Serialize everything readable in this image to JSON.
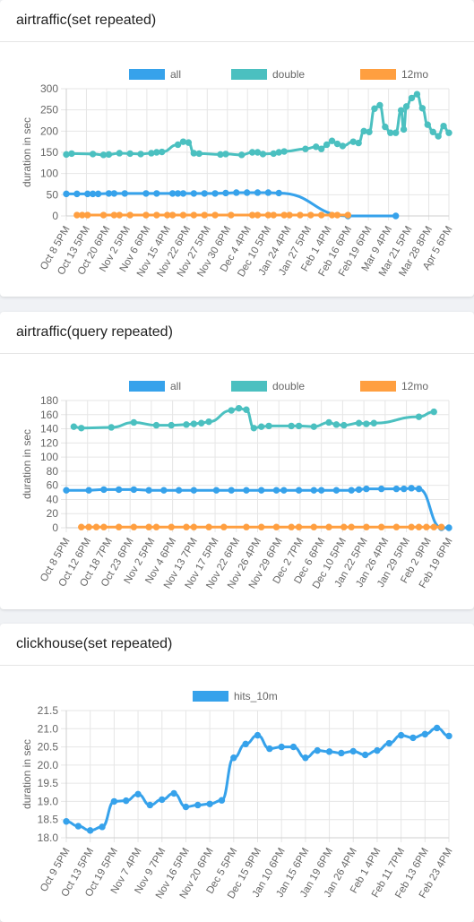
{
  "cards": [
    {
      "title": "airtraffic(set repeated)"
    },
    {
      "title": "airtraffic(query repeated)"
    },
    {
      "title": "clickhouse(set repeated)"
    }
  ],
  "chart_data": [
    {
      "type": "line",
      "ylabel": "duration in sec",
      "ylim": [
        0,
        300
      ],
      "yticks": [
        0,
        50,
        100,
        150,
        200,
        250,
        300
      ],
      "legend_position": "top",
      "x_tick_labels": [
        "Oct 8 5PM",
        "Oct 13 5PM",
        "Oct 20 6PM",
        "Nov 2 5PM",
        "Nov 6 6PM",
        "Nov 15 4PM",
        "Nov 22 6PM",
        "Nov 27 5PM",
        "Nov 30 6PM",
        "Dec 4 4PM",
        "Dec 10 5PM",
        "Jan 24 4PM",
        "Jan 27 5PM",
        "Feb 1 4PM",
        "Feb 16 6PM",
        "Feb 19 6PM",
        "Mar 9 4PM",
        "Mar 21 5PM",
        "Mar 28 8PM",
        "Apr 5 6PM"
      ],
      "series": [
        {
          "name": "all",
          "color": "#36a2eb",
          "points": [
            [
              0,
              52
            ],
            [
              2,
              52
            ],
            [
              4,
              52
            ],
            [
              5,
              52
            ],
            [
              6,
              52
            ],
            [
              8,
              53
            ],
            [
              9,
              53
            ],
            [
              11,
              53
            ],
            [
              15,
              53
            ],
            [
              17,
              53
            ],
            [
              20,
              53
            ],
            [
              21,
              53
            ],
            [
              22,
              53
            ],
            [
              24,
              53
            ],
            [
              26,
              53
            ],
            [
              28,
              53
            ],
            [
              30,
              54
            ],
            [
              32,
              55
            ],
            [
              34,
              55
            ],
            [
              36,
              55
            ],
            [
              38,
              55
            ],
            [
              40,
              54
            ],
            [
              53,
              0
            ],
            [
              62,
              0
            ]
          ]
        },
        {
          "name": "double",
          "color": "#4bc0c0",
          "points": [
            [
              0,
              145
            ],
            [
              1,
              147
            ],
            [
              5,
              146
            ],
            [
              7,
              144
            ],
            [
              8,
              145
            ],
            [
              10,
              148
            ],
            [
              12,
              147
            ],
            [
              14,
              146
            ],
            [
              16,
              148
            ],
            [
              17,
              150
            ],
            [
              18,
              151
            ],
            [
              21,
              168
            ],
            [
              22,
              175
            ],
            [
              23,
              173
            ],
            [
              24,
              148
            ],
            [
              25,
              147
            ],
            [
              29,
              145
            ],
            [
              30,
              146
            ],
            [
              33,
              144
            ],
            [
              35,
              150
            ],
            [
              36,
              150
            ],
            [
              37,
              146
            ],
            [
              39,
              147
            ],
            [
              40,
              150
            ],
            [
              41,
              152
            ],
            [
              45,
              158
            ],
            [
              47,
              163
            ],
            [
              48,
              158
            ],
            [
              49,
              168
            ],
            [
              50,
              177
            ],
            [
              51,
              170
            ],
            [
              52,
              165
            ],
            [
              54,
              175
            ],
            [
              55,
              172
            ],
            [
              56,
              200
            ],
            [
              57,
              198
            ],
            [
              58,
              253
            ],
            [
              59,
              261
            ],
            [
              60,
              210
            ],
            [
              61,
              196
            ],
            [
              62,
              196
            ],
            [
              63,
              249
            ],
            [
              63.5,
              204
            ],
            [
              64,
              258
            ],
            [
              65,
              278
            ],
            [
              66,
              287
            ],
            [
              67,
              254
            ],
            [
              68,
              215
            ],
            [
              69,
              198
            ],
            [
              70,
              188
            ],
            [
              71,
              212
            ],
            [
              72,
              196
            ]
          ]
        },
        {
          "name": "12mo",
          "color": "#ff9f40",
          "points": [
            [
              2,
              2
            ],
            [
              3,
              2
            ],
            [
              4,
              2
            ],
            [
              7,
              2
            ],
            [
              9,
              2
            ],
            [
              10,
              2
            ],
            [
              12,
              2
            ],
            [
              15,
              2
            ],
            [
              17,
              2
            ],
            [
              19,
              2
            ],
            [
              20,
              2
            ],
            [
              22,
              2
            ],
            [
              24,
              2
            ],
            [
              26,
              2
            ],
            [
              28,
              2
            ],
            [
              31,
              2
            ],
            [
              35,
              2
            ],
            [
              36,
              2
            ],
            [
              38,
              2
            ],
            [
              39,
              2
            ],
            [
              41,
              2
            ],
            [
              42,
              2
            ],
            [
              44,
              2
            ],
            [
              46,
              2
            ],
            [
              48,
              2
            ],
            [
              50,
              2
            ],
            [
              51,
              2
            ],
            [
              53,
              2
            ]
          ]
        }
      ]
    },
    {
      "type": "line",
      "ylabel": "duration in sec",
      "ylim": [
        0,
        180
      ],
      "yticks": [
        0,
        20,
        40,
        60,
        80,
        100,
        120,
        140,
        160,
        180
      ],
      "legend_position": "top",
      "x_tick_labels": [
        "Oct 8 5PM",
        "Oct 12 6PM",
        "Oct 18 7PM",
        "Oct 23 6PM",
        "Nov 2 5PM",
        "Nov 4 6PM",
        "Nov 13 7PM",
        "Nov 17 5PM",
        "Nov 22 6PM",
        "Nov 26 4PM",
        "Nov 29 6PM",
        "Dec 2 7PM",
        "Dec 6 6PM",
        "Dec 10 5PM",
        "Jan 22 5PM",
        "Jan 26 4PM",
        "Jan 29 5PM",
        "Feb 2 9PM",
        "Feb 19 6PM"
      ],
      "series": [
        {
          "name": "all",
          "color": "#36a2eb",
          "points": [
            [
              0,
              53
            ],
            [
              3,
              53
            ],
            [
              5,
              54
            ],
            [
              7,
              54
            ],
            [
              9,
              54
            ],
            [
              11,
              53
            ],
            [
              13,
              53
            ],
            [
              15,
              53
            ],
            [
              17,
              53
            ],
            [
              20,
              53
            ],
            [
              22,
              53
            ],
            [
              24,
              53
            ],
            [
              26,
              53
            ],
            [
              28,
              53
            ],
            [
              29,
              53
            ],
            [
              31,
              53
            ],
            [
              33,
              53
            ],
            [
              34,
              53
            ],
            [
              36,
              53
            ],
            [
              38,
              53
            ],
            [
              39,
              54
            ],
            [
              40,
              55
            ],
            [
              42,
              55
            ],
            [
              44,
              55
            ],
            [
              45,
              55
            ],
            [
              46,
              56
            ],
            [
              47,
              55
            ],
            [
              50,
              0
            ],
            [
              51,
              0
            ]
          ]
        },
        {
          "name": "double",
          "color": "#4bc0c0",
          "points": [
            [
              1,
              143
            ],
            [
              2,
              141
            ],
            [
              6,
              142
            ],
            [
              9,
              149
            ],
            [
              12,
              145
            ],
            [
              14,
              145
            ],
            [
              16,
              146
            ],
            [
              17,
              147
            ],
            [
              18,
              148
            ],
            [
              19,
              150
            ],
            [
              22,
              166
            ],
            [
              23,
              169
            ],
            [
              24,
              167
            ],
            [
              25,
              141
            ],
            [
              26,
              143
            ],
            [
              27,
              144
            ],
            [
              30,
              144
            ],
            [
              31,
              144
            ],
            [
              33,
              143
            ],
            [
              35,
              149
            ],
            [
              36,
              146
            ],
            [
              37,
              145
            ],
            [
              39,
              148
            ],
            [
              40,
              147
            ],
            [
              41,
              148
            ],
            [
              47,
              157
            ],
            [
              49,
              164
            ]
          ]
        },
        {
          "name": "12mo",
          "color": "#ff9f40",
          "points": [
            [
              2,
              1
            ],
            [
              3,
              1
            ],
            [
              4,
              1
            ],
            [
              5,
              1
            ],
            [
              7,
              1
            ],
            [
              9,
              1
            ],
            [
              11,
              1
            ],
            [
              12,
              1
            ],
            [
              14,
              1
            ],
            [
              16,
              1
            ],
            [
              17,
              1
            ],
            [
              19,
              1
            ],
            [
              21,
              1
            ],
            [
              24,
              1
            ],
            [
              26,
              1
            ],
            [
              28,
              1
            ],
            [
              30,
              1
            ],
            [
              31,
              1
            ],
            [
              33,
              1
            ],
            [
              35,
              1
            ],
            [
              37,
              1
            ],
            [
              38,
              1
            ],
            [
              40,
              1
            ],
            [
              42,
              1
            ],
            [
              44,
              1
            ],
            [
              46,
              1
            ],
            [
              47,
              1
            ],
            [
              48,
              1
            ],
            [
              49,
              1
            ],
            [
              50,
              1
            ]
          ]
        }
      ]
    },
    {
      "type": "line",
      "ylabel": "duration in sec",
      "ylim": [
        18.0,
        21.5
      ],
      "yticks": [
        18.0,
        18.5,
        19.0,
        19.5,
        20.0,
        20.5,
        21.0,
        21.5
      ],
      "legend_position": "top",
      "x_tick_labels": [
        "Oct 9 5PM",
        "Oct 13 5PM",
        "Oct 19 5PM",
        "Nov 7 4PM",
        "Nov 9 7PM",
        "Nov 16 5PM",
        "Nov 20 6PM",
        "Dec 5 5PM",
        "Dec 15 9PM",
        "Jan 10 6PM",
        "Jan 15 6PM",
        "Jan 19 6PM",
        "Jan 26 4PM",
        "Feb 1 4PM",
        "Feb 11 7PM",
        "Feb 13 6PM",
        "Feb 23 4PM"
      ],
      "series": [
        {
          "name": "hits_10m",
          "color": "#36a2eb",
          "points": [
            [
              0,
              18.45
            ],
            [
              1,
              18.32
            ],
            [
              2,
              18.2
            ],
            [
              3,
              18.3
            ],
            [
              4,
              19.0
            ],
            [
              5,
              19.02
            ],
            [
              6,
              19.2
            ],
            [
              7,
              18.9
            ],
            [
              8,
              19.05
            ],
            [
              9,
              19.22
            ],
            [
              10,
              18.85
            ],
            [
              11,
              18.9
            ],
            [
              12,
              18.93
            ],
            [
              13,
              19.03
            ],
            [
              14,
              20.2
            ],
            [
              15,
              20.58
            ],
            [
              16,
              20.82
            ],
            [
              17,
              20.45
            ],
            [
              18,
              20.5
            ],
            [
              19,
              20.5
            ],
            [
              20,
              20.2
            ],
            [
              21,
              20.4
            ],
            [
              22,
              20.37
            ],
            [
              23,
              20.33
            ],
            [
              24,
              20.38
            ],
            [
              25,
              20.28
            ],
            [
              26,
              20.4
            ],
            [
              27,
              20.6
            ],
            [
              28,
              20.82
            ],
            [
              29,
              20.75
            ],
            [
              30,
              20.85
            ],
            [
              31,
              21.02
            ],
            [
              32,
              20.8
            ]
          ]
        }
      ]
    }
  ]
}
